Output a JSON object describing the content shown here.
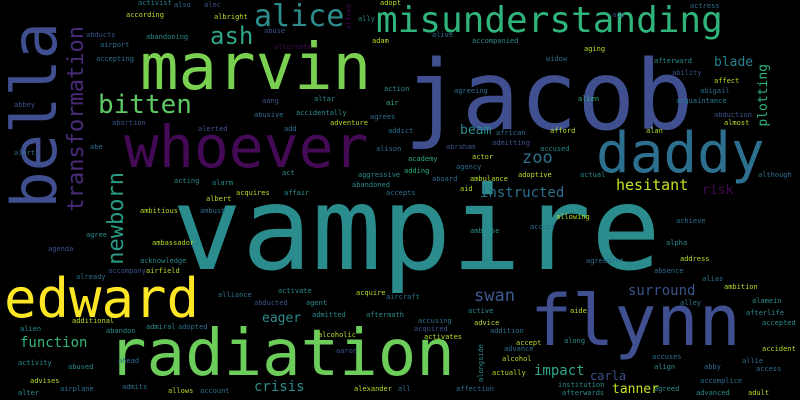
{
  "palette": {
    "background": "#000000",
    "teal": "#2a8c8c",
    "indigo": "#3f4f8f",
    "green": "#7ad151",
    "lime": "#b5de2b",
    "yellow": "#fde725",
    "purple": "#440a55",
    "seagreen": "#22a884",
    "mint": "#4fc46a"
  },
  "words": [
    {
      "text": "vampire",
      "color": "#2a8c8c"
    },
    {
      "text": "jacob",
      "color": "#3f4f8f"
    },
    {
      "text": "misunderstanding",
      "color": "#2fb47c"
    },
    {
      "text": "marvin",
      "color": "#7ad151"
    },
    {
      "text": "whoever",
      "color": "#440a55"
    },
    {
      "text": "daddy",
      "color": "#2d6f8e"
    },
    {
      "text": "bella",
      "color": "#3f4f8f"
    },
    {
      "text": "edward",
      "color": "#fde725"
    },
    {
      "text": "radiation",
      "color": "#6ccd5a"
    },
    {
      "text": "flynn",
      "color": "#3f4f8f"
    },
    {
      "text": "alice",
      "color": "#2d8c8c"
    },
    {
      "text": "ash",
      "color": "#2fa58a"
    },
    {
      "text": "bitten",
      "color": "#5ec962"
    },
    {
      "text": "transformation",
      "color": "#4a2a78"
    },
    {
      "text": "newborn",
      "color": "#2a9a86"
    },
    {
      "text": "hesitant",
      "color": "#c8e020"
    },
    {
      "text": "swan",
      "color": "#3e5a92"
    },
    {
      "text": "surround",
      "color": "#3b528b"
    },
    {
      "text": "zoo",
      "color": "#2d708e"
    },
    {
      "text": "blade",
      "color": "#26828e"
    },
    {
      "text": "plotting",
      "color": "#2fb47c"
    },
    {
      "text": "instructed",
      "color": "#2d708e"
    },
    {
      "text": "beam",
      "color": "#2a8c8c"
    },
    {
      "text": "risk",
      "color": "#440a55"
    },
    {
      "text": "impact",
      "color": "#2fa58a"
    },
    {
      "text": "carla",
      "color": "#3b528b"
    },
    {
      "text": "tanner",
      "color": "#c8e020"
    },
    {
      "text": "crisis",
      "color": "#2a8c8c"
    },
    {
      "text": "function",
      "color": "#35b779"
    },
    {
      "text": "eager",
      "color": "#2a8c8c"
    },
    {
      "text": "according",
      "color": "#b5de2b"
    },
    {
      "text": "also",
      "color": "#2d708e"
    },
    {
      "text": "alec",
      "color": "#3b528b"
    },
    {
      "text": "albright",
      "color": "#b5de2b"
    },
    {
      "text": "alfred",
      "color": "#440a55"
    },
    {
      "text": "ally",
      "color": "#2a8c8c"
    },
    {
      "text": "activist",
      "color": "#26828e"
    },
    {
      "text": "actress",
      "color": "#2d708e"
    },
    {
      "text": "abducts",
      "color": "#3b528b"
    },
    {
      "text": "airport",
      "color": "#2d708e"
    },
    {
      "text": "abandoning",
      "color": "#2a8c8c"
    },
    {
      "text": "abuse",
      "color": "#3b528b"
    },
    {
      "text": "alternate",
      "color": "#440a55"
    },
    {
      "text": "adam",
      "color": "#b5de2b"
    },
    {
      "text": "adopt",
      "color": "#b5de2b"
    },
    {
      "text": "alive",
      "color": "#2d708e"
    },
    {
      "text": "accompanied",
      "color": "#2a8c8c"
    },
    {
      "text": "accepting",
      "color": "#2d708e"
    },
    {
      "text": "aging",
      "color": "#b5de2b"
    },
    {
      "text": "afterward",
      "color": "#2a8c8c"
    },
    {
      "text": "ability",
      "color": "#3b528b"
    },
    {
      "text": "affect",
      "color": "#b5de2b"
    },
    {
      "text": "abigail",
      "color": "#2d708e"
    },
    {
      "text": "abbey",
      "color": "#3b528b"
    },
    {
      "text": "agreeing",
      "color": "#2d708e"
    },
    {
      "text": "action",
      "color": "#2a8c8c"
    },
    {
      "text": "widow",
      "color": "#2d708e"
    },
    {
      "text": "altar",
      "color": "#2a8c8c"
    },
    {
      "text": "air",
      "color": "#2fb47c"
    },
    {
      "text": "alien",
      "color": "#2fb47c"
    },
    {
      "text": "acquaintance",
      "color": "#26828e"
    },
    {
      "text": "abortion",
      "color": "#3b528b"
    },
    {
      "text": "abusive",
      "color": "#2d708e"
    },
    {
      "text": "accidentally",
      "color": "#2a8c8c"
    },
    {
      "text": "adventure",
      "color": "#b5de2b"
    },
    {
      "text": "agrees",
      "color": "#2d708e"
    },
    {
      "text": "addict",
      "color": "#2d708e"
    },
    {
      "text": "abduction",
      "color": "#3b528b"
    },
    {
      "text": "almost",
      "color": "#b5de2b"
    },
    {
      "text": "alert",
      "color": "#2d708e"
    },
    {
      "text": "abe",
      "color": "#2d708e"
    },
    {
      "text": "african",
      "color": "#2d708e"
    },
    {
      "text": "afford",
      "color": "#b5de2b"
    },
    {
      "text": "alan",
      "color": "#b5de2b"
    },
    {
      "text": "accused",
      "color": "#2a8c8c"
    },
    {
      "text": "alerted",
      "color": "#3b528b"
    },
    {
      "text": "add",
      "color": "#2d708e"
    },
    {
      "text": "alison",
      "color": "#2d708e"
    },
    {
      "text": "academy",
      "color": "#2fa58a"
    },
    {
      "text": "actor",
      "color": "#b5de2b"
    },
    {
      "text": "agency",
      "color": "#2d708e"
    },
    {
      "text": "admitting",
      "color": "#3b528b"
    },
    {
      "text": "adoptive",
      "color": "#b5de2b"
    },
    {
      "text": "actual",
      "color": "#2a8c8c"
    },
    {
      "text": "although",
      "color": "#2d708e"
    },
    {
      "text": "acting",
      "color": "#2a8c8c"
    },
    {
      "text": "act",
      "color": "#2a8c8c"
    },
    {
      "text": "aggressive",
      "color": "#2a8c8c"
    },
    {
      "text": "abandoned",
      "color": "#2a8c8c"
    },
    {
      "text": "accepts",
      "color": "#2d708e"
    },
    {
      "text": "aboard",
      "color": "#2d708e"
    },
    {
      "text": "ambulance",
      "color": "#b5de2b"
    },
    {
      "text": "aid",
      "color": "#b5de2b"
    },
    {
      "text": "adding",
      "color": "#2fb47c"
    },
    {
      "text": "alarm",
      "color": "#2a8c8c"
    },
    {
      "text": "affair",
      "color": "#2a8c8c"
    },
    {
      "text": "acquires",
      "color": "#b5de2b"
    },
    {
      "text": "albert",
      "color": "#b5de2b"
    },
    {
      "text": "ambitious",
      "color": "#b5de2b"
    },
    {
      "text": "ambush",
      "color": "#2d708e"
    },
    {
      "text": "ambrose",
      "color": "#2a8c8c"
    },
    {
      "text": "accept",
      "color": "#2d708e"
    },
    {
      "text": "allowing",
      "color": "#b5de2b"
    },
    {
      "text": "achieve",
      "color": "#2d708e"
    },
    {
      "text": "alpha",
      "color": "#2a8c8c"
    },
    {
      "text": "address",
      "color": "#b5de2b"
    },
    {
      "text": "alias",
      "color": "#2d708e"
    },
    {
      "text": "absence",
      "color": "#2d708e"
    },
    {
      "text": "ambition",
      "color": "#b5de2b"
    },
    {
      "text": "agree",
      "color": "#2a8c8c"
    },
    {
      "text": "ambassador",
      "color": "#b5de2b"
    },
    {
      "text": "acknowledge",
      "color": "#2a8c8c"
    },
    {
      "text": "airfield",
      "color": "#b5de2b"
    },
    {
      "text": "already",
      "color": "#2d708e"
    },
    {
      "text": "accompany",
      "color": "#3b528b"
    },
    {
      "text": "alliance",
      "color": "#2d708e"
    },
    {
      "text": "activate",
      "color": "#2a8c8c"
    },
    {
      "text": "agent",
      "color": "#2a8c8c"
    },
    {
      "text": "acquire",
      "color": "#b5de2b"
    },
    {
      "text": "aircraft",
      "color": "#2d708e"
    },
    {
      "text": "aide",
      "color": "#b5de2b"
    },
    {
      "text": "agreement",
      "color": "#2d708e"
    },
    {
      "text": "alley",
      "color": "#2d708e"
    },
    {
      "text": "alamein",
      "color": "#2a8c8c"
    },
    {
      "text": "afterlife",
      "color": "#2a8c8c"
    },
    {
      "text": "accepted",
      "color": "#2a8c8c"
    },
    {
      "text": "additional",
      "color": "#b5de2b"
    },
    {
      "text": "admiral",
      "color": "#2a8c8c"
    },
    {
      "text": "adopted",
      "color": "#2d708e"
    },
    {
      "text": "admitted",
      "color": "#2a8c8c"
    },
    {
      "text": "aftermath",
      "color": "#2a8c8c"
    },
    {
      "text": "accusing",
      "color": "#2d708e"
    },
    {
      "text": "acquired",
      "color": "#3b528b"
    },
    {
      "text": "activates",
      "color": "#b5de2b"
    },
    {
      "text": "active",
      "color": "#2a8c8c"
    },
    {
      "text": "advice",
      "color": "#b5de2b"
    },
    {
      "text": "addition",
      "color": "#2d708e"
    },
    {
      "text": "along",
      "color": "#2a8c8c"
    },
    {
      "text": "accident",
      "color": "#b5de2b"
    },
    {
      "text": "abandon",
      "color": "#2a8c8c"
    },
    {
      "text": "alcoholic",
      "color": "#b5de2b"
    },
    {
      "text": "alongside",
      "color": "#2a8c8c"
    },
    {
      "text": "accept",
      "color": "#b5de2b"
    },
    {
      "text": "advance",
      "color": "#2d708e"
    },
    {
      "text": "activity",
      "color": "#2a8c8c"
    },
    {
      "text": "abused",
      "color": "#2a8c8c"
    },
    {
      "text": "ahead",
      "color": "#2d708e"
    },
    {
      "text": "alcohol",
      "color": "#b5de2b"
    },
    {
      "text": "actually",
      "color": "#b5de2b"
    },
    {
      "text": "accuses",
      "color": "#2d708e"
    },
    {
      "text": "align",
      "color": "#2a8c8c"
    },
    {
      "text": "abby",
      "color": "#2d708e"
    },
    {
      "text": "allie",
      "color": "#2d708e"
    },
    {
      "text": "access",
      "color": "#2d708e"
    },
    {
      "text": "advises",
      "color": "#b5de2b"
    },
    {
      "text": "alter",
      "color": "#2a8c8c"
    },
    {
      "text": "airplane",
      "color": "#2d708e"
    },
    {
      "text": "admits",
      "color": "#2d708e"
    },
    {
      "text": "allows",
      "color": "#b5de2b"
    },
    {
      "text": "account",
      "color": "#2d708e"
    },
    {
      "text": "alexander",
      "color": "#b5de2b"
    },
    {
      "text": "all",
      "color": "#2d708e"
    },
    {
      "text": "affection",
      "color": "#2d708e"
    },
    {
      "text": "institution",
      "color": "#2a8c8c"
    },
    {
      "text": "afterwards",
      "color": "#2a8c8c"
    },
    {
      "text": "agreed",
      "color": "#2a8c8c"
    },
    {
      "text": "accomplice",
      "color": "#2d708e"
    },
    {
      "text": "advanced",
      "color": "#2a8c8c"
    },
    {
      "text": "adult",
      "color": "#b5de2b"
    },
    {
      "text": "alien",
      "color": "#2a8c8c"
    },
    {
      "text": "abraham",
      "color": "#3b528b"
    },
    {
      "text": "abducted",
      "color": "#3b528b"
    },
    {
      "text": "aang",
      "color": "#3b528b"
    },
    {
      "text": "agenda",
      "color": "#3b528b"
    },
    {
      "text": "aaron",
      "color": "#3b528b"
    },
    {
      "text": "aco",
      "color": "#3b528b"
    }
  ]
}
